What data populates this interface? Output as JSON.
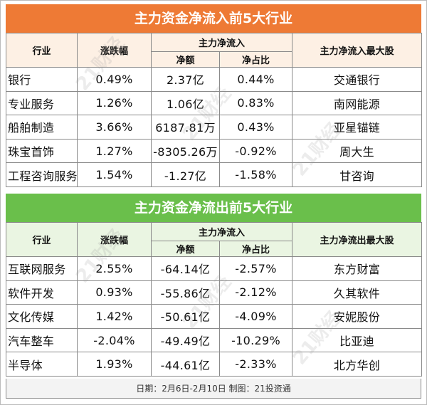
{
  "inflow": {
    "title": "主力资金净流入前5大行业",
    "headers": {
      "industry": "行业",
      "change": "涨跌幅",
      "main_flow": "主力净流入",
      "net": "净额",
      "ratio": "净占比",
      "top_stock": "主力净流入最大股"
    },
    "rows": [
      {
        "industry": "银行",
        "change": "0.49%",
        "net": "2.37亿",
        "ratio": "0.44%",
        "stock": "交通银行"
      },
      {
        "industry": "专业服务",
        "change": "1.26%",
        "net": "1.06亿",
        "ratio": "0.83%",
        "stock": "南网能源"
      },
      {
        "industry": "船舶制造",
        "change": "3.66%",
        "net": "6187.81万",
        "ratio": "0.43%",
        "stock": "亚星锚链"
      },
      {
        "industry": "珠宝首饰",
        "change": "1.27%",
        "net": "-8305.26万",
        "ratio": "-0.92%",
        "stock": "周大生"
      },
      {
        "industry": "工程咨询服务",
        "change": "1.54%",
        "net": "-1.27亿",
        "ratio": "-1.58%",
        "stock": "甘咨询"
      }
    ]
  },
  "outflow": {
    "title": "主力资金净流出前5大行业",
    "headers": {
      "industry": "行业",
      "change": "涨跌幅",
      "main_flow": "主力净流入",
      "net": "净额",
      "ratio": "净占比",
      "top_stock": "主力净流出最大股"
    },
    "rows": [
      {
        "industry": "互联网服务",
        "change": "2.55%",
        "net": "-64.14亿",
        "ratio": "-2.57%",
        "stock": "东方财富"
      },
      {
        "industry": "软件开发",
        "change": "0.93%",
        "net": "-55.86亿",
        "ratio": "-2.12%",
        "stock": "久其软件"
      },
      {
        "industry": "文化传媒",
        "change": "1.42%",
        "net": "-50.61亿",
        "ratio": "-4.09%",
        "stock": "安妮股份"
      },
      {
        "industry": "汽车整车",
        "change": "-2.04%",
        "net": "-49.49亿",
        "ratio": "-10.29%",
        "stock": "比亚迪"
      },
      {
        "industry": "半导体",
        "change": "1.93%",
        "net": "-44.61亿",
        "ratio": "-2.33%",
        "stock": "北方华创"
      }
    ]
  },
  "footer": "日期：2月6日-2月10日 制图：21投资通",
  "watermark": "21财经",
  "colors": {
    "inflow_band": "#ee7a35",
    "outflow_band": "#6abf4b",
    "inflow_header_bg": "#fdf0e4",
    "outflow_header_bg": "#eaf5e2"
  }
}
